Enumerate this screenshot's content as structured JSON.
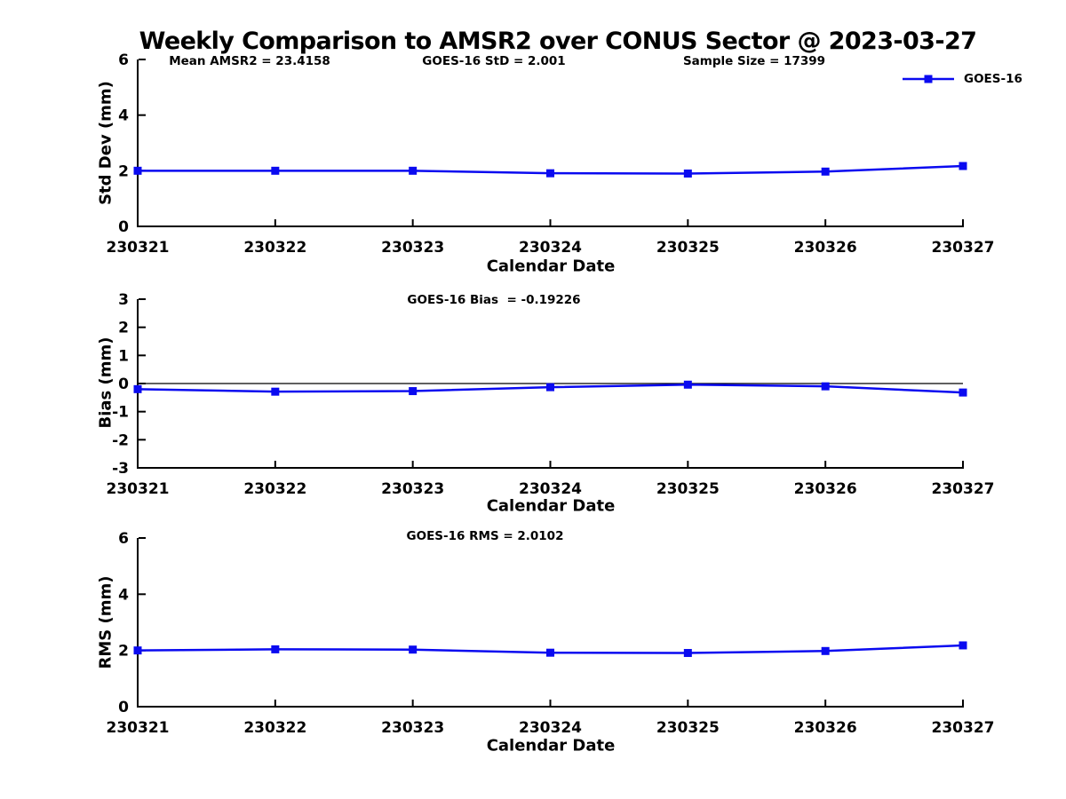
{
  "title": "Weekly Comparison to AMSR2 over CONUS Sector @ 2023-03-27",
  "legend": {
    "label": "GOES-16",
    "position": "top-right"
  },
  "colors": {
    "series": "#0a0af0",
    "axis": "#000000",
    "zero_line": "#000000",
    "text": "#000000",
    "background": "#ffffff"
  },
  "chart_data": [
    {
      "type": "line",
      "title": "",
      "categories": [
        "230321",
        "230322",
        "230323",
        "230324",
        "230325",
        "230326",
        "230327"
      ],
      "series": [
        {
          "name": "GOES-16",
          "values": [
            2.0,
            2.0,
            2.0,
            1.91,
            1.9,
            1.97,
            2.17
          ]
        }
      ],
      "xlabel": "Calendar Date",
      "ylabel": "Std Dev (mm)",
      "ylim": [
        0,
        6
      ],
      "yticks": [
        0,
        2,
        4,
        6
      ],
      "grid": false,
      "marker": "square",
      "annotations": [
        "Mean AMSR2 = 23.4158",
        "GOES-16 StD = 2.001",
        "Sample Size = 17399"
      ]
    },
    {
      "type": "line",
      "title": "",
      "categories": [
        "230321",
        "230322",
        "230323",
        "230324",
        "230325",
        "230326",
        "230327"
      ],
      "series": [
        {
          "name": "GOES-16",
          "values": [
            -0.2,
            -0.29,
            -0.27,
            -0.13,
            -0.04,
            -0.1,
            -0.32
          ]
        }
      ],
      "xlabel": "Calendar Date",
      "ylabel": "Bias (mm)",
      "ylim": [
        -3,
        3
      ],
      "yticks": [
        -3,
        -2,
        -1,
        0,
        1,
        2,
        3
      ],
      "grid": false,
      "marker": "square",
      "zero_line": true,
      "annotations": [
        "GOES-16 Bias  = -0.19226"
      ]
    },
    {
      "type": "line",
      "title": "",
      "categories": [
        "230321",
        "230322",
        "230323",
        "230324",
        "230325",
        "230326",
        "230327"
      ],
      "series": [
        {
          "name": "GOES-16",
          "values": [
            2.0,
            2.04,
            2.03,
            1.92,
            1.91,
            1.98,
            2.18
          ]
        }
      ],
      "xlabel": "Calendar Date",
      "ylabel": "RMS (mm)",
      "ylim": [
        0,
        6
      ],
      "yticks": [
        0,
        2,
        4,
        6
      ],
      "grid": false,
      "marker": "square",
      "annotations": [
        "GOES-16 RMS = 2.0102"
      ]
    }
  ]
}
